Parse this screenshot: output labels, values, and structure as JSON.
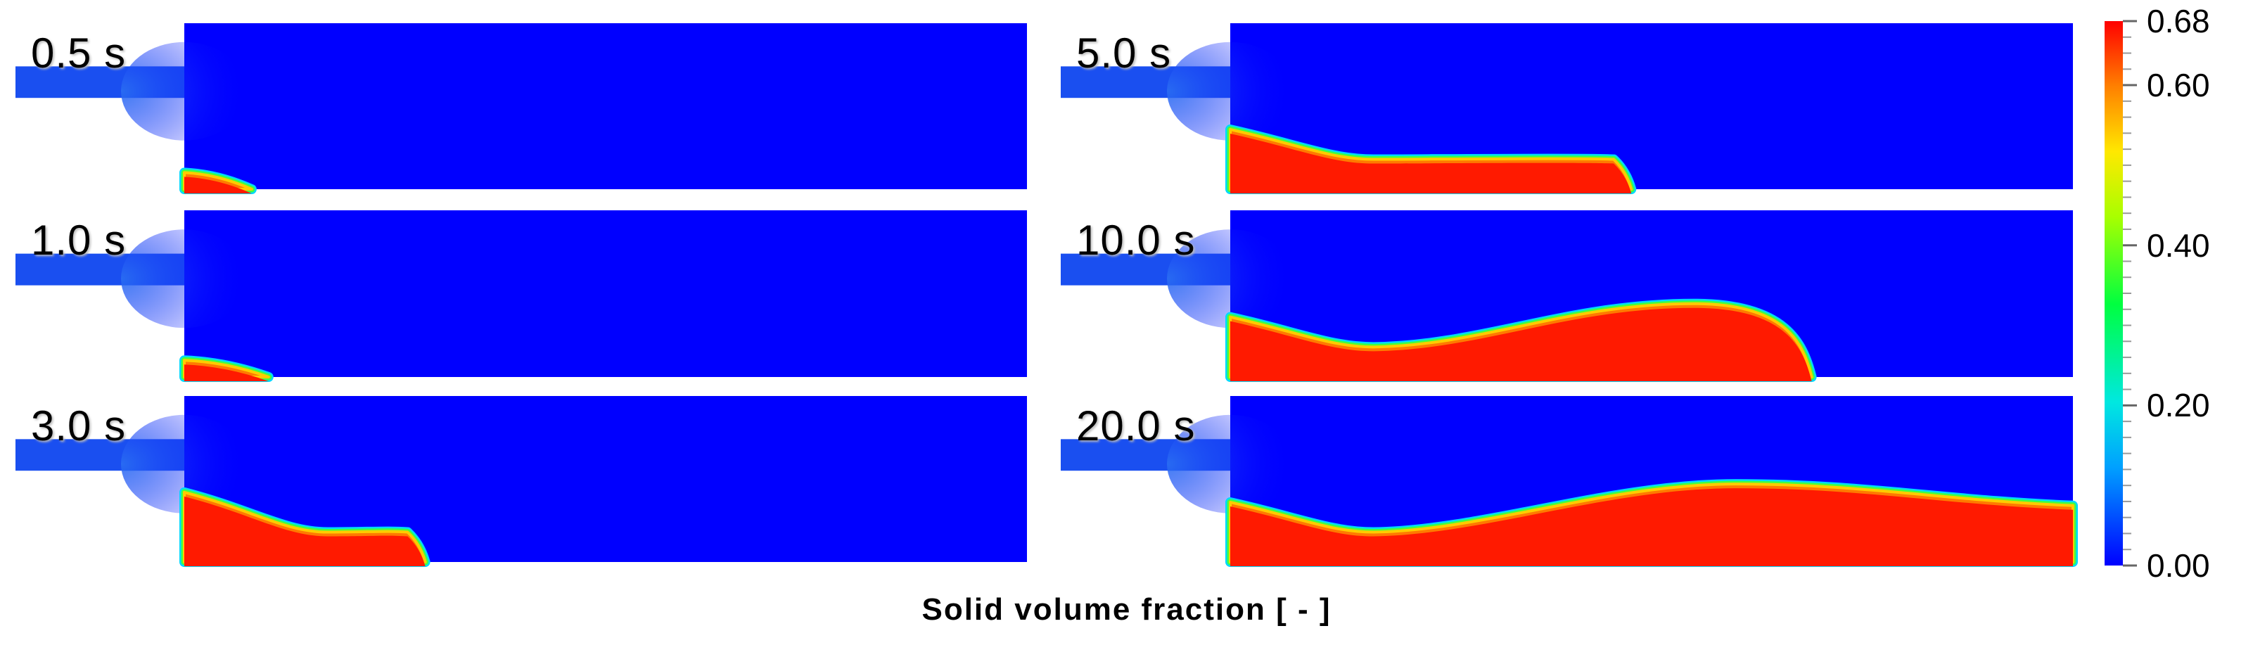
{
  "panels": [
    {
      "time": "0.5 s",
      "front": 0.08,
      "peak": 0.0
    },
    {
      "time": "1.0 s",
      "front": 0.1,
      "peak": 0.0
    },
    {
      "time": "3.0 s",
      "front": 0.28,
      "peak": 0.0
    },
    {
      "time": "5.0 s",
      "front": 0.47,
      "peak": 0.0
    },
    {
      "time": "10.0 s",
      "front": 0.69,
      "peak": 0.55
    },
    {
      "time": "20.0 s",
      "front": 1.0,
      "peak": 0.6
    }
  ],
  "colorbar": {
    "min": 0.0,
    "max": 0.68,
    "tick_labels": [
      "0.68",
      "0.60",
      "0.40",
      "0.20",
      "0.00"
    ],
    "tick_values": [
      0.68,
      0.6,
      0.4,
      0.2,
      0.0
    ]
  },
  "caption": "Solid volume fraction [ - ]",
  "colors": {
    "background_field": "#0000ff",
    "inlet": "#1a4ff0",
    "deposit": "#ff1a00"
  }
}
